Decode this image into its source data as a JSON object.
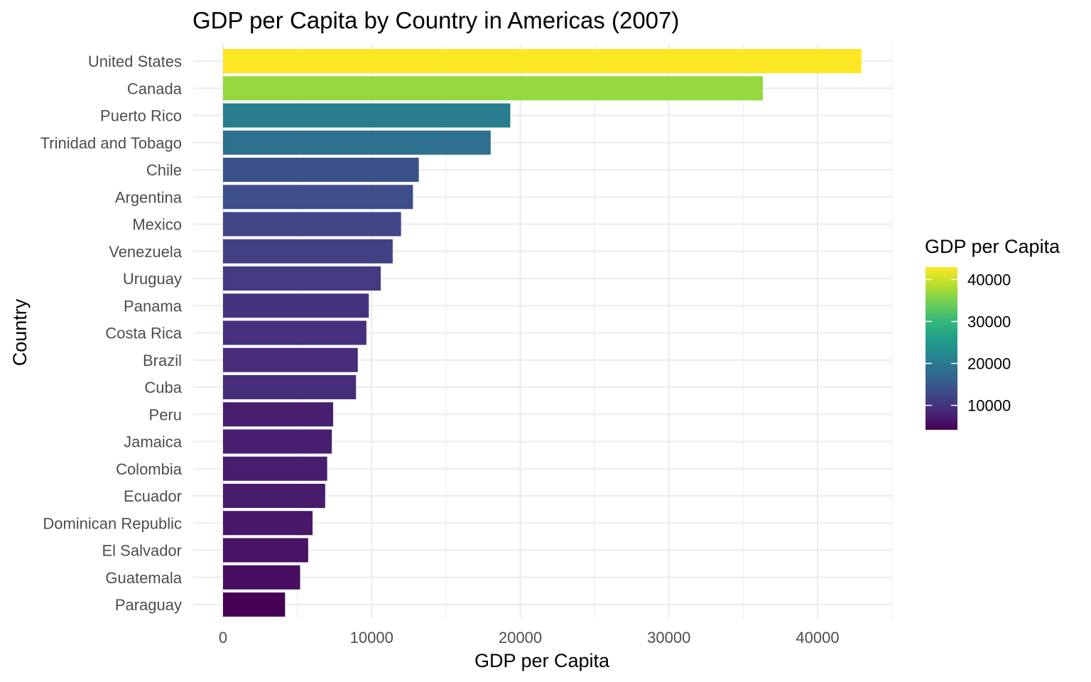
{
  "chart_data": {
    "type": "bar",
    "orientation": "horizontal",
    "title": "GDP per Capita by Country in Americas (2007)",
    "xlabel": "GDP per Capita",
    "ylabel": "Country",
    "xlim": [
      0,
      45000
    ],
    "xticks": [
      "0",
      "10000",
      "20000",
      "30000",
      "40000"
    ],
    "xtick_values": [
      0,
      10000,
      20000,
      30000,
      40000
    ],
    "grid": true,
    "categories": [
      "United States",
      "Canada",
      "Puerto Rico",
      "Trinidad and Tobago",
      "Chile",
      "Argentina",
      "Mexico",
      "Venezuela",
      "Uruguay",
      "Panama",
      "Costa Rica",
      "Brazil",
      "Cuba",
      "Peru",
      "Jamaica",
      "Colombia",
      "Ecuador",
      "Dominican Republic",
      "El Salvador",
      "Guatemala",
      "Paraguay"
    ],
    "values": [
      42952,
      36319,
      19329,
      18009,
      13172,
      12779,
      11978,
      11416,
      10611,
      9809,
      9645,
      9066,
      8948,
      7409,
      7321,
      7007,
      6873,
      6025,
      5728,
      5186,
      4173
    ],
    "colors": [
      "#fde725",
      "#95d840",
      "#287d8e",
      "#2d718e",
      "#3b518b",
      "#3d4e8a",
      "#404688",
      "#424186",
      "#443a83",
      "#46337f",
      "#46317e",
      "#472c7a",
      "#472c7a",
      "#481f70",
      "#481f70",
      "#481c6e",
      "#481b6d",
      "#48186a",
      "#471365",
      "#470e61",
      "#440154"
    ],
    "legend": {
      "title": "GDP per Capita",
      "position": "right",
      "ticks": [
        "40000",
        "30000",
        "20000",
        "10000"
      ],
      "tick_values": [
        40000,
        30000,
        20000,
        10000
      ],
      "range": [
        4173,
        42952
      ],
      "gradient": [
        "#fde725",
        "#b5de2b",
        "#6ece58",
        "#35b779",
        "#1f9e89",
        "#26828e",
        "#31688e",
        "#3e4989",
        "#482878",
        "#440154"
      ]
    }
  }
}
